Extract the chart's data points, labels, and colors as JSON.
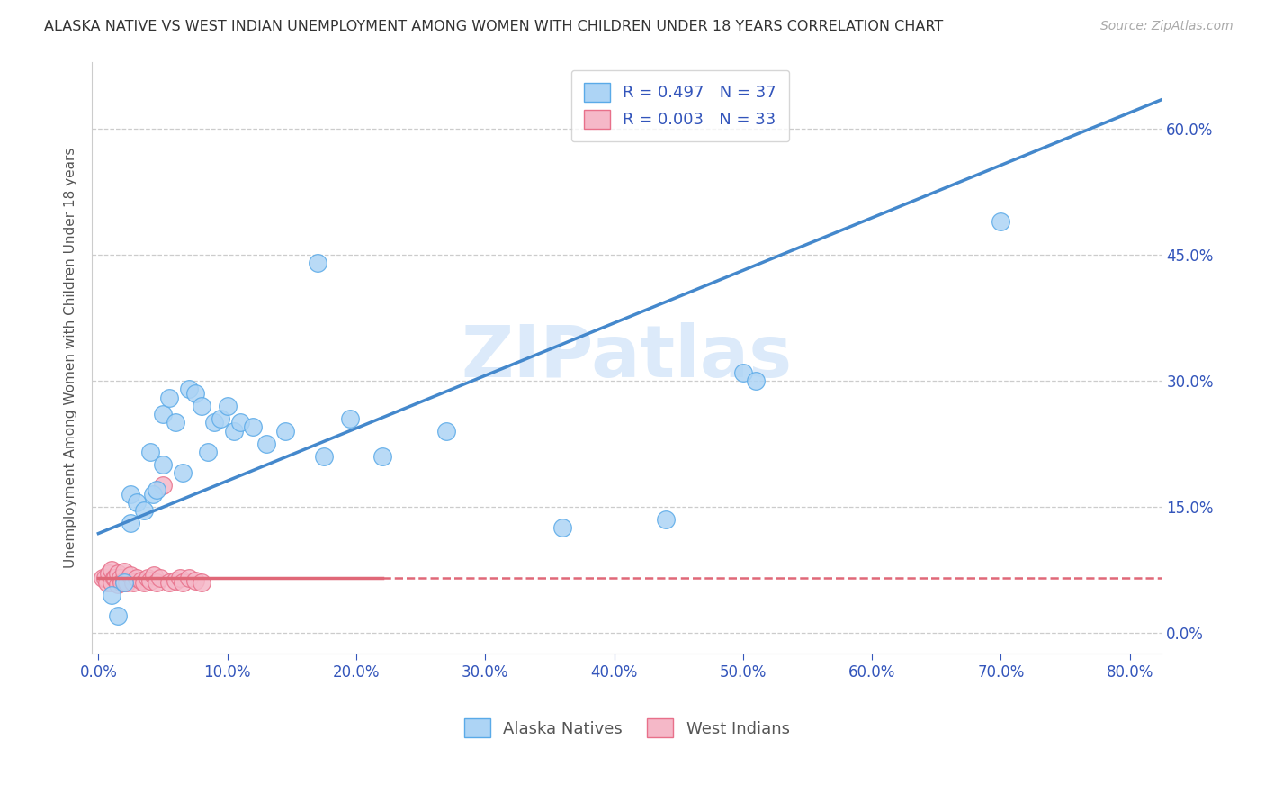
{
  "title": "ALASKA NATIVE VS WEST INDIAN UNEMPLOYMENT AMONG WOMEN WITH CHILDREN UNDER 18 YEARS CORRELATION CHART",
  "source": "Source: ZipAtlas.com",
  "xlabel_ticks": [
    "0.0%",
    "10.0%",
    "20.0%",
    "30.0%",
    "40.0%",
    "50.0%",
    "60.0%",
    "70.0%",
    "80.0%"
  ],
  "xlabel_vals": [
    0.0,
    0.1,
    0.2,
    0.3,
    0.4,
    0.5,
    0.6,
    0.7,
    0.8
  ],
  "ylabel_ticks": [
    "0.0%",
    "15.0%",
    "30.0%",
    "45.0%",
    "60.0%"
  ],
  "ylabel_vals": [
    0.0,
    0.15,
    0.3,
    0.45,
    0.6
  ],
  "ylabel_label": "Unemployment Among Women with Children Under 18 years",
  "xlim": [
    -0.005,
    0.825
  ],
  "ylim": [
    -0.025,
    0.68
  ],
  "alaska_R": "0.497",
  "alaska_N": "37",
  "west_R": "0.003",
  "west_N": "33",
  "alaska_color": "#add4f5",
  "west_color": "#f5b8c8",
  "alaska_edge_color": "#5aaae8",
  "west_edge_color": "#e8708a",
  "alaska_line_color": "#4488cc",
  "west_line_color": "#e06878",
  "legend_text_color": "#3355bb",
  "background_color": "#ffffff",
  "watermark_text": "ZIPatlas",
  "alaska_line_x0": 0.0,
  "alaska_line_y0": 0.118,
  "alaska_line_x1": 0.825,
  "alaska_line_y1": 0.635,
  "west_line_x0": 0.0,
  "west_line_y0": 0.065,
  "west_line_x1": 0.825,
  "west_line_y1": 0.065,
  "alaska_x": [
    0.01,
    0.015,
    0.02,
    0.025,
    0.025,
    0.03,
    0.035,
    0.04,
    0.042,
    0.045,
    0.05,
    0.05,
    0.055,
    0.06,
    0.065,
    0.07,
    0.075,
    0.08,
    0.085,
    0.09,
    0.095,
    0.1,
    0.105,
    0.11,
    0.12,
    0.13,
    0.145,
    0.17,
    0.175,
    0.195,
    0.22,
    0.27,
    0.36,
    0.44,
    0.5,
    0.51,
    0.7
  ],
  "alaska_y": [
    0.045,
    0.02,
    0.06,
    0.13,
    0.165,
    0.155,
    0.145,
    0.215,
    0.165,
    0.17,
    0.2,
    0.26,
    0.28,
    0.25,
    0.19,
    0.29,
    0.285,
    0.27,
    0.215,
    0.25,
    0.255,
    0.27,
    0.24,
    0.25,
    0.245,
    0.225,
    0.24,
    0.44,
    0.21,
    0.255,
    0.21,
    0.24,
    0.125,
    0.135,
    0.31,
    0.3,
    0.49
  ],
  "west_x": [
    0.003,
    0.005,
    0.007,
    0.008,
    0.01,
    0.01,
    0.012,
    0.013,
    0.015,
    0.015,
    0.017,
    0.018,
    0.02,
    0.02,
    0.022,
    0.025,
    0.027,
    0.03,
    0.033,
    0.035,
    0.038,
    0.04,
    0.043,
    0.045,
    0.048,
    0.05,
    0.055,
    0.06,
    0.063,
    0.065,
    0.07,
    0.075,
    0.08
  ],
  "west_y": [
    0.065,
    0.065,
    0.06,
    0.07,
    0.06,
    0.075,
    0.065,
    0.065,
    0.058,
    0.07,
    0.065,
    0.06,
    0.062,
    0.072,
    0.06,
    0.068,
    0.06,
    0.065,
    0.062,
    0.06,
    0.065,
    0.062,
    0.068,
    0.06,
    0.065,
    0.175,
    0.06,
    0.062,
    0.065,
    0.06,
    0.065,
    0.062,
    0.06
  ],
  "west_outlier_x": [
    0.01
  ],
  "west_outlier_y": [
    0.175
  ]
}
